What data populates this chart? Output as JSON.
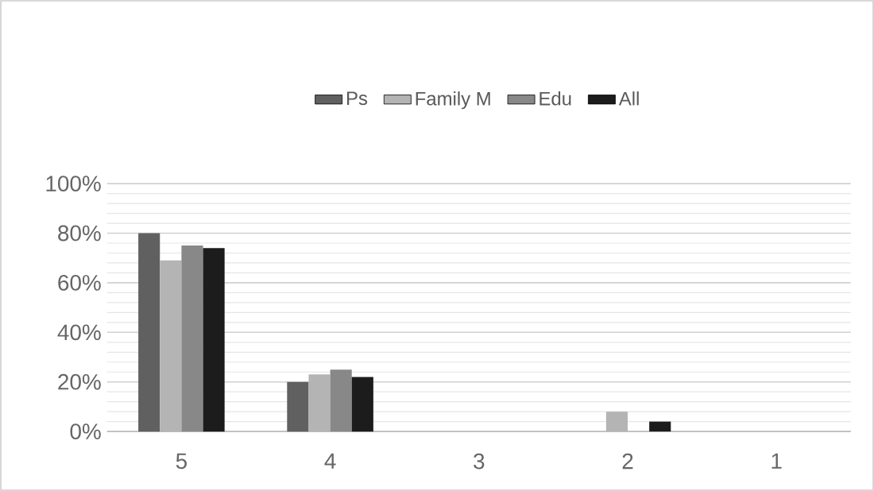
{
  "chart_data": {
    "type": "bar",
    "categories": [
      "5",
      "4",
      "3",
      "2",
      "1"
    ],
    "series": [
      {
        "name": "Ps",
        "color": "#606060",
        "values": [
          80,
          20,
          0,
          0,
          0
        ]
      },
      {
        "name": "Family M",
        "color": "#b4b4b4",
        "values": [
          69,
          23,
          0,
          8,
          0
        ]
      },
      {
        "name": "Edu",
        "color": "#888888",
        "values": [
          75,
          25,
          0,
          0,
          0
        ]
      },
      {
        "name": "All",
        "color": "#1c1c1c",
        "values": [
          74,
          22,
          0,
          4,
          0
        ]
      }
    ],
    "ylim": [
      0,
      100
    ],
    "yticks": [
      {
        "value": 0,
        "label": "0%"
      },
      {
        "value": 20,
        "label": "20%"
      },
      {
        "value": 40,
        "label": "40%"
      },
      {
        "value": 60,
        "label": "60%"
      },
      {
        "value": 80,
        "label": "80%"
      },
      {
        "value": 100,
        "label": "100%"
      }
    ],
    "grid": "y",
    "legend": "top"
  }
}
